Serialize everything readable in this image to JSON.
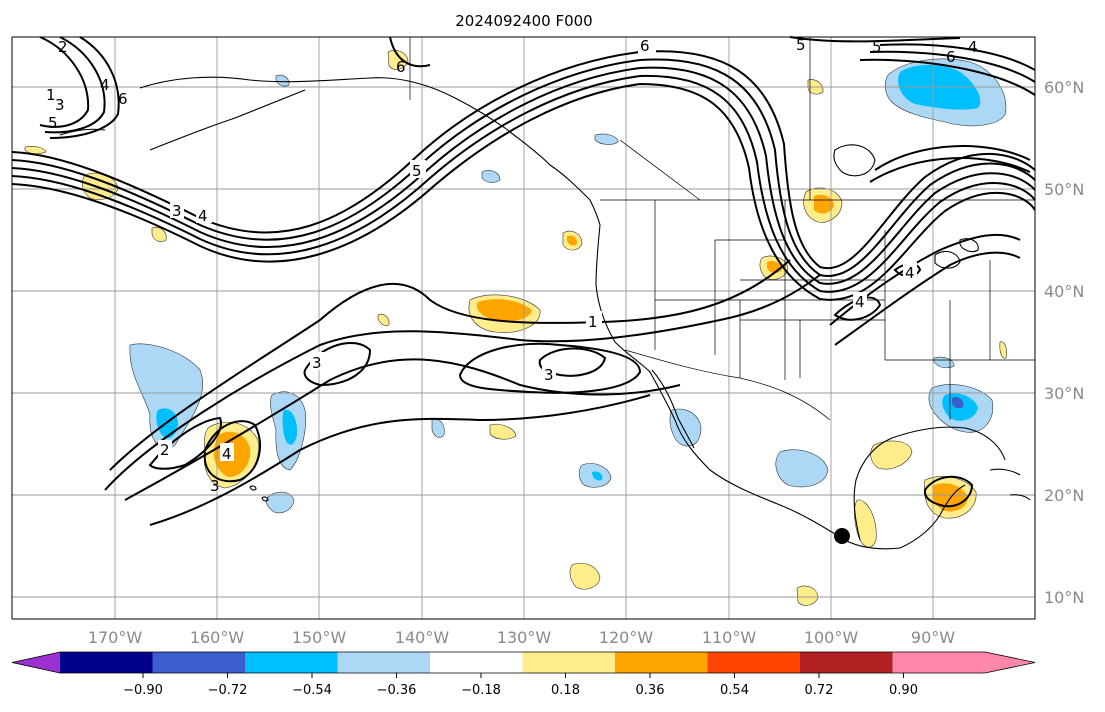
{
  "title": "2024092400 F000",
  "map": {
    "lat_labels": [
      "60°N",
      "50°N",
      "40°N",
      "30°N",
      "20°N",
      "10°N"
    ],
    "lon_labels": [
      "170°W",
      "160°W",
      "150°W",
      "140°W",
      "130°W",
      "120°W",
      "110°W",
      "100°W",
      "90°W"
    ],
    "contour_labels": [
      "6",
      "5",
      "4",
      "3",
      "2",
      "1",
      "6",
      "5",
      "4",
      "3",
      "3",
      "1",
      "3",
      "2",
      "4",
      "3",
      "4",
      "4",
      "6",
      "5",
      "4",
      "5",
      "6"
    ]
  },
  "colorbar": {
    "colors": [
      "#9b30d0",
      "#00008b",
      "#3a5fcd",
      "#00bfff",
      "#add8f5",
      "#ffffff",
      "#ffec8b",
      "#ffa500",
      "#ff4500",
      "#b22222",
      "#ff88aa",
      "#ff88aa"
    ],
    "tick_labels": [
      "−0.90",
      "−0.72",
      "−0.54",
      "−0.36",
      "−0.18",
      "0.18",
      "0.36",
      "0.54",
      "0.72",
      "0.90"
    ],
    "extend": "both"
  },
  "marker": {
    "label": ""
  }
}
